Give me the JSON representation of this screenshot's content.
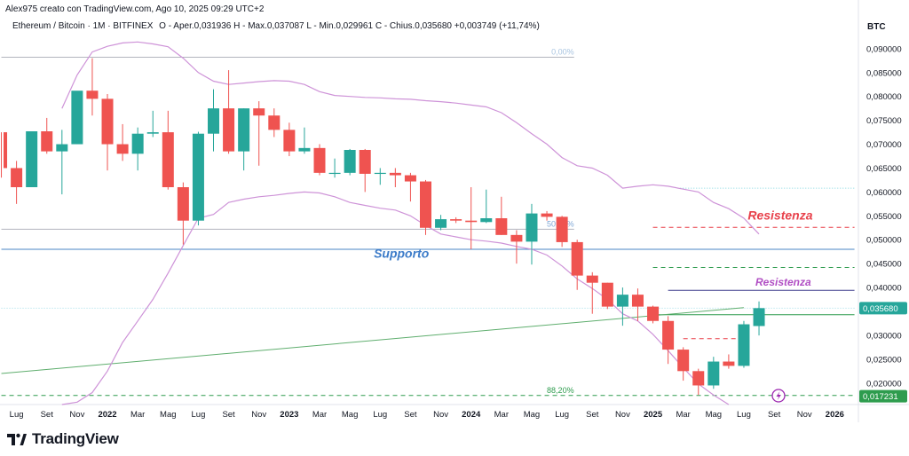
{
  "header": {
    "creator": "Alex975 creato con TradingView.com, Ago 10, 2025 09:29 UTC+2",
    "symbol": "Ethereum / Bitcoin · 1M · BITFINEX",
    "ohlc": "O - Aper.0,031936  H - Max.0,037087  L - Min.0,029961  C - Chius.0,035680  +0,003749 (+11,74%)",
    "unit": "BTC"
  },
  "brand": {
    "name": "TradingView",
    "logo_icon": "tradingview-logo-icon"
  },
  "chart_data": {
    "type": "candlestick",
    "y_axis_ticks": [
      "0,090000",
      "0,085000",
      "0,080000",
      "0,075000",
      "0,070000",
      "0,065000",
      "0,060000",
      "0,055000",
      "0,050000",
      "0,045000",
      "0,040000",
      "0,030000",
      "0,025000",
      "0,020000"
    ],
    "ylim": [
      0.0155,
      0.0935
    ],
    "x_axis_labels": [
      {
        "label": "Lug",
        "t": 0
      },
      {
        "label": "Set",
        "t": 2
      },
      {
        "label": "Nov",
        "t": 4
      },
      {
        "label": "2022",
        "t": 6,
        "bold": true
      },
      {
        "label": "Mar",
        "t": 8
      },
      {
        "label": "Mag",
        "t": 10
      },
      {
        "label": "Lug",
        "t": 12
      },
      {
        "label": "Set",
        "t": 14
      },
      {
        "label": "Nov",
        "t": 16
      },
      {
        "label": "2023",
        "t": 18,
        "bold": true
      },
      {
        "label": "Mar",
        "t": 20
      },
      {
        "label": "Mag",
        "t": 22
      },
      {
        "label": "Lug",
        "t": 24
      },
      {
        "label": "Set",
        "t": 26
      },
      {
        "label": "Nov",
        "t": 28
      },
      {
        "label": "2024",
        "t": 30,
        "bold": true
      },
      {
        "label": "Mar",
        "t": 32
      },
      {
        "label": "Mag",
        "t": 34
      },
      {
        "label": "Lug",
        "t": 36
      },
      {
        "label": "Set",
        "t": 38
      },
      {
        "label": "Nov",
        "t": 40
      },
      {
        "label": "2025",
        "t": 42,
        "bold": true
      },
      {
        "label": "Mar",
        "t": 44
      },
      {
        "label": "Mag",
        "t": 46
      },
      {
        "label": "Lug",
        "t": 48
      },
      {
        "label": "Set",
        "t": 50
      },
      {
        "label": "Nov",
        "t": 52
      },
      {
        "label": "2026",
        "t": 54,
        "bold": true
      }
    ],
    "candles": [
      {
        "t": -1,
        "o": 0.0725,
        "h": 0.0725,
        "l": 0.063,
        "c": 0.065
      },
      {
        "t": 0,
        "o": 0.065,
        "h": 0.0665,
        "l": 0.0575,
        "c": 0.061
      },
      {
        "t": 1,
        "o": 0.061,
        "h": 0.0725,
        "l": 0.061,
        "c": 0.0727
      },
      {
        "t": 2,
        "o": 0.0727,
        "h": 0.0755,
        "l": 0.068,
        "c": 0.0685
      },
      {
        "t": 3,
        "o": 0.0685,
        "h": 0.073,
        "l": 0.0595,
        "c": 0.07
      },
      {
        "t": 4,
        "o": 0.07,
        "h": 0.081,
        "l": 0.07,
        "c": 0.0812
      },
      {
        "t": 5,
        "o": 0.0812,
        "h": 0.088,
        "l": 0.076,
        "c": 0.0795
      },
      {
        "t": 6,
        "o": 0.0795,
        "h": 0.0805,
        "l": 0.0645,
        "c": 0.07
      },
      {
        "t": 7,
        "o": 0.07,
        "h": 0.0742,
        "l": 0.0665,
        "c": 0.068
      },
      {
        "t": 8,
        "o": 0.068,
        "h": 0.0735,
        "l": 0.0645,
        "c": 0.0722
      },
      {
        "t": 9,
        "o": 0.0722,
        "h": 0.077,
        "l": 0.0715,
        "c": 0.0725
      },
      {
        "t": 10,
        "o": 0.0725,
        "h": 0.077,
        "l": 0.0605,
        "c": 0.061
      },
      {
        "t": 11,
        "o": 0.061,
        "h": 0.062,
        "l": 0.049,
        "c": 0.054
      },
      {
        "t": 12,
        "o": 0.054,
        "h": 0.0726,
        "l": 0.053,
        "c": 0.0722
      },
      {
        "t": 13,
        "o": 0.0722,
        "h": 0.0815,
        "l": 0.0685,
        "c": 0.0775
      },
      {
        "t": 14,
        "o": 0.0775,
        "h": 0.0855,
        "l": 0.068,
        "c": 0.0685
      },
      {
        "t": 15,
        "o": 0.0685,
        "h": 0.0775,
        "l": 0.0645,
        "c": 0.0775
      },
      {
        "t": 16,
        "o": 0.0775,
        "h": 0.079,
        "l": 0.0655,
        "c": 0.076
      },
      {
        "t": 17,
        "o": 0.076,
        "h": 0.0775,
        "l": 0.0715,
        "c": 0.073
      },
      {
        "t": 18,
        "o": 0.073,
        "h": 0.0745,
        "l": 0.0675,
        "c": 0.0685
      },
      {
        "t": 19,
        "o": 0.0685,
        "h": 0.0735,
        "l": 0.068,
        "c": 0.0692
      },
      {
        "t": 20,
        "o": 0.0692,
        "h": 0.07,
        "l": 0.0635,
        "c": 0.064
      },
      {
        "t": 21,
        "o": 0.064,
        "h": 0.067,
        "l": 0.063,
        "c": 0.064
      },
      {
        "t": 22,
        "o": 0.064,
        "h": 0.069,
        "l": 0.0635,
        "c": 0.0688
      },
      {
        "t": 23,
        "o": 0.0688,
        "h": 0.069,
        "l": 0.06,
        "c": 0.0638
      },
      {
        "t": 24,
        "o": 0.0638,
        "h": 0.065,
        "l": 0.0615,
        "c": 0.064
      },
      {
        "t": 25,
        "o": 0.064,
        "h": 0.065,
        "l": 0.061,
        "c": 0.0635
      },
      {
        "t": 26,
        "o": 0.0635,
        "h": 0.064,
        "l": 0.058,
        "c": 0.0622
      },
      {
        "t": 27,
        "o": 0.0622,
        "h": 0.0625,
        "l": 0.051,
        "c": 0.0525
      },
      {
        "t": 28,
        "o": 0.0525,
        "h": 0.0552,
        "l": 0.052,
        "c": 0.0543
      },
      {
        "t": 29,
        "o": 0.0543,
        "h": 0.0547,
        "l": 0.0535,
        "c": 0.054
      },
      {
        "t": 30,
        "o": 0.054,
        "h": 0.061,
        "l": 0.048,
        "c": 0.0537
      },
      {
        "t": 31,
        "o": 0.0537,
        "h": 0.0605,
        "l": 0.0535,
        "c": 0.0545
      },
      {
        "t": 32,
        "o": 0.0545,
        "h": 0.059,
        "l": 0.051,
        "c": 0.051
      },
      {
        "t": 33,
        "o": 0.051,
        "h": 0.052,
        "l": 0.045,
        "c": 0.0496
      },
      {
        "t": 34,
        "o": 0.0496,
        "h": 0.0575,
        "l": 0.0448,
        "c": 0.0555
      },
      {
        "t": 35,
        "o": 0.0555,
        "h": 0.056,
        "l": 0.054,
        "c": 0.0548
      },
      {
        "t": 36,
        "o": 0.0548,
        "h": 0.055,
        "l": 0.0485,
        "c": 0.0495
      },
      {
        "t": 37,
        "o": 0.0495,
        "h": 0.05,
        "l": 0.0395,
        "c": 0.0425
      },
      {
        "t": 38,
        "o": 0.0425,
        "h": 0.0432,
        "l": 0.0345,
        "c": 0.041
      },
      {
        "t": 39,
        "o": 0.041,
        "h": 0.041,
        "l": 0.0355,
        "c": 0.036
      },
      {
        "t": 40,
        "o": 0.036,
        "h": 0.04,
        "l": 0.032,
        "c": 0.0385
      },
      {
        "t": 41,
        "o": 0.0385,
        "h": 0.0398,
        "l": 0.033,
        "c": 0.036
      },
      {
        "t": 42,
        "o": 0.036,
        "h": 0.0362,
        "l": 0.0325,
        "c": 0.033
      },
      {
        "t": 43,
        "o": 0.033,
        "h": 0.034,
        "l": 0.024,
        "c": 0.027
      },
      {
        "t": 44,
        "o": 0.027,
        "h": 0.0275,
        "l": 0.0205,
        "c": 0.0225
      },
      {
        "t": 45,
        "o": 0.0225,
        "h": 0.023,
        "l": 0.0175,
        "c": 0.0195
      },
      {
        "t": 46,
        "o": 0.0195,
        "h": 0.0255,
        "l": 0.0188,
        "c": 0.0245
      },
      {
        "t": 47,
        "o": 0.0245,
        "h": 0.026,
        "l": 0.023,
        "c": 0.0236
      },
      {
        "t": 48,
        "o": 0.0236,
        "h": 0.033,
        "l": 0.0232,
        "c": 0.0323
      },
      {
        "t": 49,
        "o": 0.031936,
        "h": 0.037087,
        "l": 0.029961,
        "c": 0.03568
      }
    ],
    "bollinger_upper": [
      [
        3,
        0.0775
      ],
      [
        4,
        0.0845
      ],
      [
        5,
        0.0893
      ],
      [
        6,
        0.0905
      ],
      [
        7,
        0.0912
      ],
      [
        8,
        0.0914
      ],
      [
        9,
        0.091
      ],
      [
        10,
        0.0904
      ],
      [
        11,
        0.088
      ],
      [
        12,
        0.085
      ],
      [
        13,
        0.0832
      ],
      [
        14,
        0.0825
      ],
      [
        15,
        0.0828
      ],
      [
        16,
        0.0831
      ],
      [
        17,
        0.0833
      ],
      [
        18,
        0.0832
      ],
      [
        19,
        0.0825
      ],
      [
        20,
        0.081
      ],
      [
        21,
        0.0802
      ],
      [
        22,
        0.08
      ],
      [
        23,
        0.0798
      ],
      [
        24,
        0.0797
      ],
      [
        25,
        0.0795
      ],
      [
        26,
        0.0794
      ],
      [
        27,
        0.0791
      ],
      [
        28,
        0.0789
      ],
      [
        29,
        0.0786
      ],
      [
        30,
        0.0782
      ],
      [
        31,
        0.0778
      ],
      [
        32,
        0.0766
      ],
      [
        33,
        0.0745
      ],
      [
        34,
        0.0722
      ],
      [
        35,
        0.07
      ],
      [
        36,
        0.0672
      ],
      [
        37,
        0.0655
      ],
      [
        38,
        0.065
      ],
      [
        39,
        0.0635
      ],
      [
        40,
        0.0608
      ],
      [
        41,
        0.0612
      ],
      [
        42,
        0.0615
      ],
      [
        43,
        0.0612
      ],
      [
        44,
        0.0606
      ],
      [
        45,
        0.06
      ],
      [
        46,
        0.0578
      ],
      [
        47,
        0.0565
      ],
      [
        48,
        0.0545
      ],
      [
        49,
        0.0512
      ]
    ],
    "bollinger_lower": [
      [
        3,
        0.0155
      ],
      [
        4,
        0.016
      ],
      [
        5,
        0.018
      ],
      [
        6,
        0.0225
      ],
      [
        7,
        0.0285
      ],
      [
        8,
        0.033
      ],
      [
        9,
        0.0375
      ],
      [
        10,
        0.043
      ],
      [
        11,
        0.0488
      ],
      [
        12,
        0.0545
      ],
      [
        13,
        0.0553
      ],
      [
        14,
        0.0578
      ],
      [
        15,
        0.0585
      ],
      [
        16,
        0.059
      ],
      [
        17,
        0.0593
      ],
      [
        18,
        0.0597
      ],
      [
        19,
        0.06
      ],
      [
        20,
        0.0598
      ],
      [
        21,
        0.059
      ],
      [
        22,
        0.0578
      ],
      [
        23,
        0.0572
      ],
      [
        24,
        0.0566
      ],
      [
        25,
        0.0562
      ],
      [
        26,
        0.055
      ],
      [
        27,
        0.053
      ],
      [
        28,
        0.0512
      ],
      [
        29,
        0.0506
      ],
      [
        30,
        0.05
      ],
      [
        31,
        0.0497
      ],
      [
        32,
        0.0493
      ],
      [
        33,
        0.0486
      ],
      [
        34,
        0.048
      ],
      [
        35,
        0.0468
      ],
      [
        36,
        0.0445
      ],
      [
        37,
        0.0418
      ],
      [
        38,
        0.0398
      ],
      [
        39,
        0.0375
      ],
      [
        40,
        0.0345
      ],
      [
        41,
        0.033
      ],
      [
        42,
        0.0302
      ],
      [
        43,
        0.0268
      ],
      [
        44,
        0.0232
      ],
      [
        45,
        0.0198
      ],
      [
        46,
        0.0175
      ],
      [
        47,
        0.0155
      ]
    ],
    "trendline": [
      [
        -1,
        0.022
      ],
      [
        48,
        0.0358
      ]
    ],
    "levels": [
      {
        "name": "fib-0-line",
        "y": 0.0882,
        "t1": -1,
        "t2": 36.8,
        "color": "#b2b5be",
        "dash": false,
        "label": "0,00%",
        "label_t": 35.3
      },
      {
        "name": "fib-50-line",
        "y": 0.0522,
        "t1": -1,
        "t2": 36.8,
        "color": "#b2b5be",
        "dash": false,
        "label": "50,00%",
        "label_t": 35.0
      },
      {
        "name": "fib-88-line",
        "y": 0.0174,
        "t1": -1,
        "t2": 55.3,
        "color": "#2e9c4e",
        "dash": true,
        "label": "88,20%",
        "label_t": 35.0
      },
      {
        "name": "supporto-line",
        "y": 0.048,
        "t1": -1,
        "t2": 55.3,
        "color": "#4a86c5",
        "dash": false
      },
      {
        "name": "resistenza-upper-line",
        "y": 0.0526,
        "t1": 42,
        "t2": 55.3,
        "color": "#e83b45",
        "dash": true
      },
      {
        "name": "green-dashed-line",
        "y": 0.0442,
        "t1": 42,
        "t2": 55.3,
        "color": "#2e9c4e",
        "dash": true
      },
      {
        "name": "resistenza-lower-line",
        "y": 0.0394,
        "t1": 43,
        "t2": 55.3,
        "color": "#3b3a8c",
        "dash": false
      },
      {
        "name": "green-solid-line",
        "y": 0.0343,
        "t1": 42,
        "t2": 55.3,
        "color": "#2e9c4e",
        "dash": false
      },
      {
        "name": "red-dashed-short-line",
        "y": 0.0293,
        "t1": 44,
        "t2": 48,
        "color": "#e83b45",
        "dash": true
      },
      {
        "name": "cyan-dotted-upper-line",
        "y": 0.0608,
        "t1": 43.8,
        "t2": 55.3,
        "color": "#7fd6e0",
        "dash": false
      },
      {
        "name": "cyan-dotted-price-line",
        "y": 0.03568,
        "t1": -1,
        "t2": 55.3,
        "color": "#9fdde6",
        "dash": false
      }
    ],
    "annotations": [
      {
        "name": "supporto-label",
        "text": "Supporto",
        "t": 25.4,
        "y": 0.0462,
        "color": "#3d7cc9",
        "size": 14
      },
      {
        "name": "resistenza-upper-label",
        "text": "Resistenza",
        "t": 50.4,
        "y": 0.0542,
        "color": "#e8424c",
        "size": 14
      },
      {
        "name": "resistenza-lower-label",
        "text": "Resistenza",
        "t": 50.6,
        "y": 0.0404,
        "color": "#b14fc4",
        "size": 12
      }
    ],
    "price_tags": [
      {
        "name": "current-price-tag",
        "text": "0,035680",
        "y": 0.03568,
        "bg": "#26a69a"
      },
      {
        "name": "low-price-tag",
        "text": "0,017231",
        "y": 0.017231,
        "bg": "#2e9c4e"
      }
    ]
  }
}
